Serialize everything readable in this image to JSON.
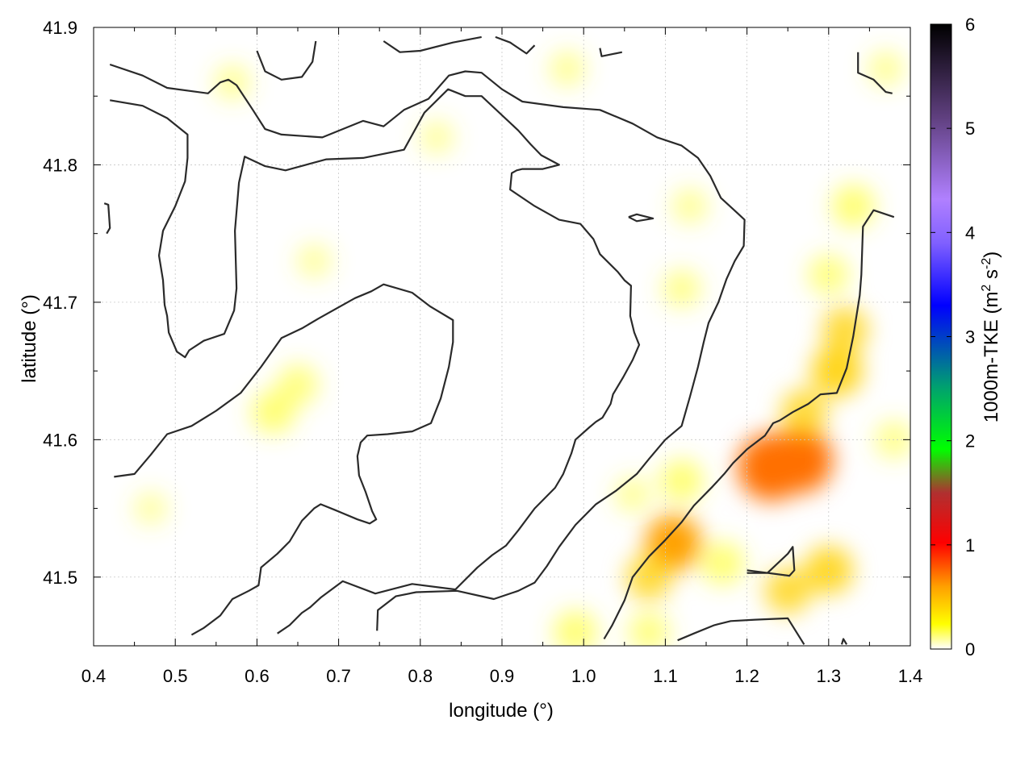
{
  "chart_data": {
    "type": "heatmap",
    "xlabel": "longitude (°)",
    "ylabel": "latitude (°)",
    "colorbar_label": "1000m-TKE (m² s⁻²)",
    "colorbar_label_parts": {
      "base": "1000m-TKE (m",
      "sup1": "2",
      "mid": " s",
      "sup2": "-2",
      "end": ")"
    },
    "xlim": [
      0.4,
      1.4
    ],
    "ylim": [
      41.45,
      41.9
    ],
    "clim": [
      0,
      6
    ],
    "x_ticks": [
      "0.4",
      "0.5",
      "0.6",
      "0.7",
      "0.8",
      "0.9",
      "1.0",
      "1.1",
      "1.2",
      "1.3",
      "1.4"
    ],
    "y_ticks": [
      "41.5",
      "41.6",
      "41.7",
      "41.8",
      "41.9"
    ],
    "cbar_ticks": [
      "0",
      "1",
      "2",
      "3",
      "4",
      "5",
      "6"
    ],
    "grid": true,
    "colormap": [
      "#ffffff",
      "#ffff00",
      "#ff8000",
      "#ff0000",
      "#00ff00",
      "#0000ff",
      "#a070ff",
      "#000000"
    ],
    "hotspots": [
      {
        "lon": 1.23,
        "lat": 41.58,
        "value": 0.8
      },
      {
        "lon": 1.265,
        "lat": 41.585,
        "value": 0.75
      },
      {
        "lon": 1.11,
        "lat": 41.525,
        "value": 0.55
      },
      {
        "lon": 1.31,
        "lat": 41.65,
        "value": 0.45
      },
      {
        "lon": 1.3,
        "lat": 41.505,
        "value": 0.4
      },
      {
        "lon": 1.25,
        "lat": 41.49,
        "value": 0.35
      },
      {
        "lon": 1.27,
        "lat": 41.62,
        "value": 0.35
      },
      {
        "lon": 0.62,
        "lat": 41.62,
        "value": 0.3
      },
      {
        "lon": 1.32,
        "lat": 41.68,
        "value": 0.35
      },
      {
        "lon": 1.33,
        "lat": 41.77,
        "value": 0.3
      },
      {
        "lon": 1.08,
        "lat": 41.5,
        "value": 0.35
      },
      {
        "lon": 1.12,
        "lat": 41.57,
        "value": 0.3
      },
      {
        "lon": 1.17,
        "lat": 41.51,
        "value": 0.3
      },
      {
        "lon": 1.08,
        "lat": 41.46,
        "value": 0.25
      },
      {
        "lon": 0.99,
        "lat": 41.46,
        "value": 0.3
      },
      {
        "lon": 0.65,
        "lat": 41.64,
        "value": 0.25
      },
      {
        "lon": 1.12,
        "lat": 41.71,
        "value": 0.2
      },
      {
        "lon": 1.3,
        "lat": 41.72,
        "value": 0.25
      },
      {
        "lon": 0.98,
        "lat": 41.87,
        "value": 0.15
      },
      {
        "lon": 0.57,
        "lat": 41.86,
        "value": 0.15
      },
      {
        "lon": 0.82,
        "lat": 41.82,
        "value": 0.12
      },
      {
        "lon": 1.38,
        "lat": 41.6,
        "value": 0.2
      },
      {
        "lon": 1.06,
        "lat": 41.56,
        "value": 0.15
      },
      {
        "lon": 0.67,
        "lat": 41.73,
        "value": 0.12
      },
      {
        "lon": 0.47,
        "lat": 41.55,
        "value": 0.1
      },
      {
        "lon": 1.37,
        "lat": 41.87,
        "value": 0.15
      },
      {
        "lon": 1.13,
        "lat": 41.77,
        "value": 0.15
      }
    ],
    "contours": [
      [
        [
          0.42,
          41.873
        ],
        [
          0.46,
          41.865
        ],
        [
          0.49,
          41.856
        ],
        [
          0.54,
          41.852
        ],
        [
          0.555,
          41.86
        ],
        [
          0.565,
          41.862
        ],
        [
          0.575,
          41.858
        ],
        [
          0.595,
          41.84
        ],
        [
          0.61,
          41.826
        ],
        [
          0.63,
          41.822
        ],
        [
          0.68,
          41.82
        ],
        [
          0.73,
          41.832
        ],
        [
          0.755,
          41.828
        ],
        [
          0.78,
          41.84
        ],
        [
          0.81,
          41.848
        ],
        [
          0.835,
          41.865
        ],
        [
          0.855,
          41.868
        ],
        [
          0.875,
          41.867
        ],
        [
          0.9,
          41.855
        ],
        [
          0.925,
          41.846
        ],
        [
          0.975,
          41.842
        ],
        [
          1.02,
          41.84
        ],
        [
          1.06,
          41.83
        ],
        [
          1.09,
          41.82
        ],
        [
          1.12,
          41.814
        ],
        [
          1.14,
          41.805
        ],
        [
          1.155,
          41.792
        ],
        [
          1.168,
          41.776
        ],
        [
          1.188,
          41.765
        ],
        [
          1.197,
          41.76
        ],
        [
          1.196,
          41.741
        ],
        [
          1.185,
          41.73
        ],
        [
          1.175,
          41.717
        ],
        [
          1.165,
          41.7
        ],
        [
          1.153,
          41.685
        ],
        [
          1.147,
          41.671
        ],
        [
          1.14,
          41.653
        ],
        [
          1.13,
          41.631
        ],
        [
          1.12,
          41.61
        ],
        [
          1.1,
          41.6
        ],
        [
          1.08,
          41.586
        ],
        [
          1.065,
          41.575
        ],
        [
          1.04,
          41.563
        ],
        [
          1.015,
          41.553
        ],
        [
          0.99,
          41.538
        ],
        [
          0.97,
          41.522
        ],
        [
          0.955,
          41.508
        ],
        [
          0.94,
          41.496
        ],
        [
          0.92,
          41.49
        ],
        [
          0.89,
          41.484
        ],
        [
          0.845,
          41.49
        ],
        [
          0.795,
          41.489
        ],
        [
          0.77,
          41.486
        ],
        [
          0.748,
          41.476
        ],
        [
          0.747,
          41.461
        ]
      ],
      [
        [
          0.42,
          41.847
        ],
        [
          0.46,
          41.843
        ],
        [
          0.49,
          41.834
        ],
        [
          0.515,
          41.822
        ],
        [
          0.515,
          41.805
        ],
        [
          0.512,
          41.788
        ],
        [
          0.5,
          41.77
        ],
        [
          0.485,
          41.752
        ],
        [
          0.48,
          41.734
        ],
        [
          0.485,
          41.716
        ],
        [
          0.487,
          41.698
        ],
        [
          0.49,
          41.69
        ],
        [
          0.492,
          41.678
        ],
        [
          0.502,
          41.664
        ],
        [
          0.512,
          41.66
        ],
        [
          0.517,
          41.665
        ],
        [
          0.535,
          41.672
        ],
        [
          0.56,
          41.677
        ],
        [
          0.572,
          41.694
        ],
        [
          0.575,
          41.71
        ],
        [
          0.573,
          41.752
        ],
        [
          0.578,
          41.787
        ],
        [
          0.585,
          41.806
        ],
        [
          0.592,
          41.804
        ],
        [
          0.61,
          41.799
        ],
        [
          0.635,
          41.796
        ],
        [
          0.66,
          41.8
        ],
        [
          0.685,
          41.804
        ],
        [
          0.73,
          41.805
        ],
        [
          0.78,
          41.811
        ],
        [
          0.805,
          41.838
        ],
        [
          0.834,
          41.855
        ],
        [
          0.855,
          41.85
        ],
        [
          0.875,
          41.85
        ],
        [
          0.92,
          41.825
        ],
        [
          0.935,
          41.815
        ],
        [
          0.948,
          41.807
        ],
        [
          0.97,
          41.8
        ],
        [
          0.95,
          41.797
        ],
        [
          0.925,
          41.797
        ],
        [
          0.918,
          41.796
        ],
        [
          0.912,
          41.794
        ],
        [
          0.91,
          41.782
        ],
        [
          0.94,
          41.77
        ],
        [
          0.97,
          41.76
        ],
        [
          0.996,
          41.757
        ],
        [
          1.012,
          41.746
        ],
        [
          1.02,
          41.735
        ],
        [
          1.042,
          41.722
        ],
        [
          1.05,
          41.716
        ],
        [
          1.058,
          41.712
        ],
        [
          1.057,
          41.69
        ],
        [
          1.062,
          41.678
        ],
        [
          1.068,
          41.669
        ],
        [
          1.06,
          41.658
        ],
        [
          1.048,
          41.645
        ],
        [
          1.036,
          41.633
        ],
        [
          1.033,
          41.626
        ],
        [
          1.023,
          41.616
        ],
        [
          1.015,
          41.613
        ],
        [
          1.007,
          41.609
        ],
        [
          0.99,
          41.6
        ],
        [
          0.985,
          41.59
        ],
        [
          0.975,
          41.575
        ],
        [
          0.965,
          41.565
        ],
        [
          0.94,
          41.55
        ],
        [
          0.92,
          41.534
        ],
        [
          0.905,
          41.523
        ],
        [
          0.888,
          41.516
        ],
        [
          0.87,
          41.507
        ],
        [
          0.843,
          41.491
        ],
        [
          0.79,
          41.495
        ],
        [
          0.745,
          41.488
        ],
        [
          0.705,
          41.497
        ],
        [
          0.678,
          41.485
        ],
        [
          0.665,
          41.478
        ],
        [
          0.655,
          41.474
        ],
        [
          0.64,
          41.465
        ],
        [
          0.625,
          41.459
        ]
      ],
      [
        [
          0.425,
          41.573
        ],
        [
          0.45,
          41.575
        ],
        [
          0.47,
          41.589
        ],
        [
          0.49,
          41.604
        ],
        [
          0.52,
          41.61
        ],
        [
          0.55,
          41.621
        ],
        [
          0.58,
          41.634
        ],
        [
          0.605,
          41.653
        ],
        [
          0.63,
          41.674
        ],
        [
          0.655,
          41.681
        ],
        [
          0.675,
          41.688
        ],
        [
          0.72,
          41.703
        ],
        [
          0.74,
          41.708
        ],
        [
          0.755,
          41.713
        ],
        [
          0.79,
          41.707
        ],
        [
          0.812,
          41.697
        ],
        [
          0.84,
          41.687
        ],
        [
          0.84,
          41.671
        ],
        [
          0.835,
          41.653
        ],
        [
          0.825,
          41.63
        ],
        [
          0.813,
          41.612
        ],
        [
          0.79,
          41.606
        ],
        [
          0.76,
          41.604
        ],
        [
          0.735,
          41.603
        ],
        [
          0.727,
          41.598
        ],
        [
          0.723,
          41.588
        ],
        [
          0.725,
          41.574
        ],
        [
          0.733,
          41.562
        ],
        [
          0.741,
          41.548
        ],
        [
          0.746,
          41.542
        ],
        [
          0.738,
          41.539
        ],
        [
          0.723,
          41.542
        ],
        [
          0.695,
          41.549
        ],
        [
          0.678,
          41.553
        ],
        [
          0.67,
          41.55
        ],
        [
          0.655,
          41.541
        ],
        [
          0.64,
          41.526
        ],
        [
          0.625,
          41.517
        ],
        [
          0.605,
          41.507
        ],
        [
          0.602,
          41.494
        ],
        [
          0.59,
          41.49
        ],
        [
          0.57,
          41.484
        ],
        [
          0.555,
          41.472
        ],
        [
          0.535,
          41.463
        ],
        [
          0.52,
          41.458
        ]
      ],
      [
        [
          0.6,
          41.883
        ],
        [
          0.61,
          41.868
        ],
        [
          0.63,
          41.862
        ],
        [
          0.655,
          41.864
        ],
        [
          0.668,
          41.875
        ],
        [
          0.672,
          41.89
        ]
      ],
      [
        [
          0.755,
          41.89
        ],
        [
          0.775,
          41.882
        ],
        [
          0.8,
          41.883
        ],
        [
          0.84,
          41.889
        ],
        [
          0.875,
          41.893
        ]
      ],
      [
        [
          0.892,
          41.893
        ],
        [
          0.91,
          41.889
        ],
        [
          0.93,
          41.881
        ],
        [
          0.94,
          41.887
        ]
      ],
      [
        [
          1.02,
          41.885
        ],
        [
          1.022,
          41.879
        ],
        [
          1.047,
          41.882
        ]
      ],
      [
        [
          0.416,
          41.75
        ],
        [
          0.42,
          41.754
        ],
        [
          0.418,
          41.771
        ],
        [
          0.413,
          41.772
        ]
      ],
      [
        [
          1.055,
          41.762
        ],
        [
          1.065,
          41.764
        ],
        [
          1.085,
          41.761
        ],
        [
          1.065,
          41.759
        ],
        [
          1.055,
          41.762
        ]
      ],
      [
        [
          1.025,
          41.455
        ],
        [
          1.035,
          41.465
        ],
        [
          1.05,
          41.483
        ],
        [
          1.06,
          41.5
        ],
        [
          1.08,
          41.515
        ],
        [
          1.1,
          41.527
        ],
        [
          1.12,
          41.54
        ],
        [
          1.135,
          41.552
        ],
        [
          1.158,
          41.566
        ],
        [
          1.172,
          41.575
        ],
        [
          1.183,
          41.583
        ],
        [
          1.2,
          41.593
        ],
        [
          1.222,
          41.603
        ],
        [
          1.232,
          41.612
        ],
        [
          1.24,
          41.614
        ],
        [
          1.256,
          41.62
        ],
        [
          1.275,
          41.626
        ],
        [
          1.29,
          41.633
        ],
        [
          1.31,
          41.634
        ],
        [
          1.322,
          41.652
        ],
        [
          1.33,
          41.675
        ],
        [
          1.338,
          41.705
        ],
        [
          1.34,
          41.72
        ],
        [
          1.342,
          41.755
        ],
        [
          1.355,
          41.767
        ],
        [
          1.38,
          41.762
        ]
      ],
      [
        [
          1.2,
          41.503
        ],
        [
          1.225,
          41.503
        ],
        [
          1.25,
          41.517
        ],
        [
          1.256,
          41.522
        ],
        [
          1.258,
          41.505
        ],
        [
          1.252,
          41.501
        ],
        [
          1.2,
          41.505
        ]
      ],
      [
        [
          1.115,
          41.454
        ],
        [
          1.135,
          41.459
        ],
        [
          1.16,
          41.465
        ],
        [
          1.18,
          41.468
        ],
        [
          1.21,
          41.469
        ],
        [
          1.25,
          41.47
        ],
        [
          1.27,
          41.451
        ]
      ],
      [
        [
          1.336,
          41.882
        ],
        [
          1.336,
          41.867
        ],
        [
          1.355,
          41.862
        ],
        [
          1.37,
          41.853
        ],
        [
          1.378,
          41.852
        ]
      ],
      [
        [
          1.316,
          41.451
        ],
        [
          1.318,
          41.455
        ],
        [
          1.322,
          41.451
        ]
      ]
    ]
  }
}
